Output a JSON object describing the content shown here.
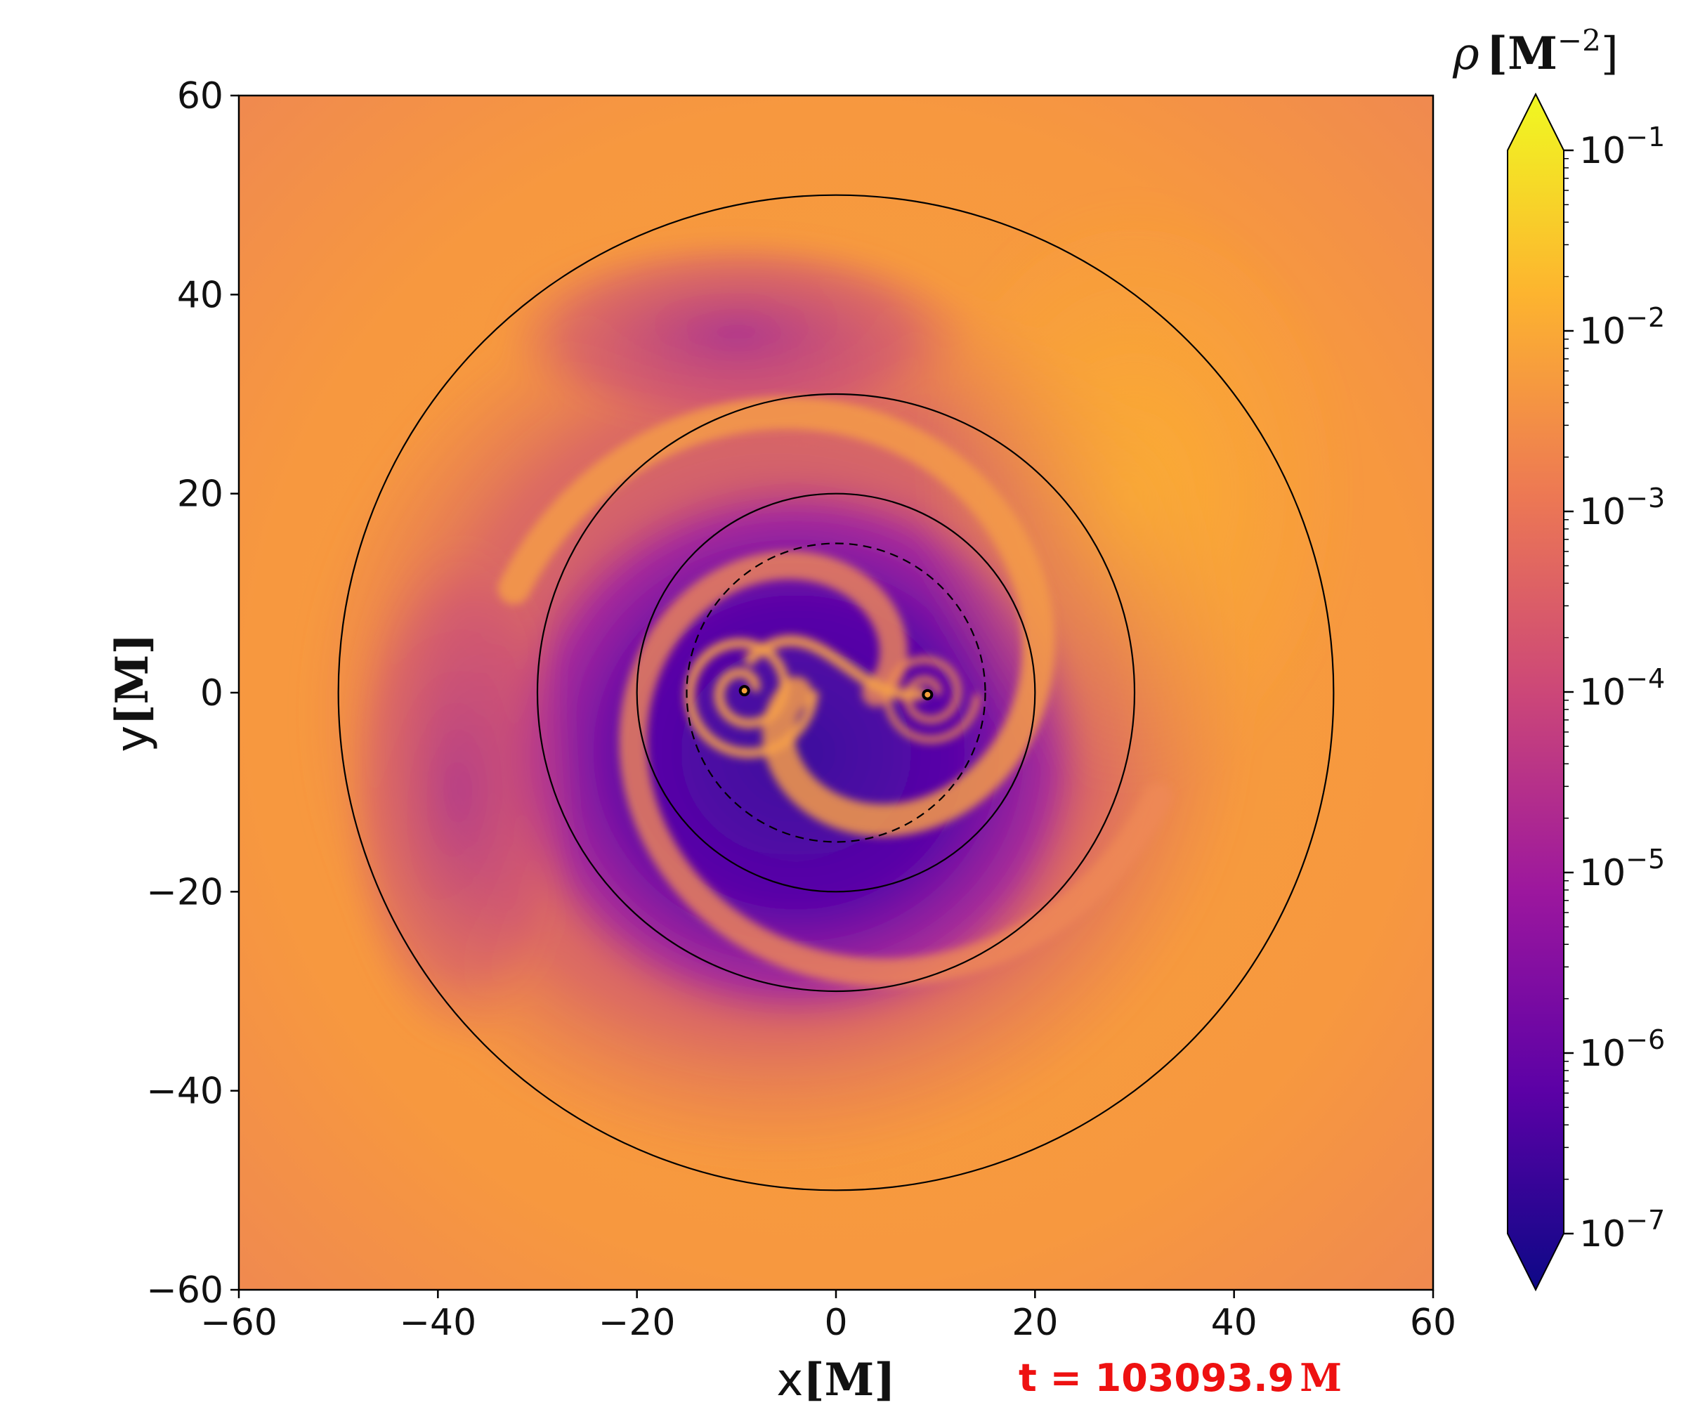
{
  "chart_data": {
    "type": "heatmap",
    "title": "",
    "xlabel": {
      "var": "x",
      "unit": "[M]"
    },
    "ylabel": {
      "var": "y",
      "unit": "[M]"
    },
    "xlim": [
      -60,
      60
    ],
    "ylim": [
      -60,
      60
    ],
    "x_ticks": [
      "−60",
      "−40",
      "−20",
      "0",
      "20",
      "40",
      "60"
    ],
    "y_ticks": [
      "60",
      "40",
      "20",
      "0",
      "−20",
      "−40",
      "−60"
    ],
    "x_tick_values": [
      -60,
      -40,
      -20,
      0,
      20,
      40,
      60
    ],
    "y_tick_values": [
      60,
      40,
      20,
      0,
      -20,
      -40,
      -60
    ],
    "colorbar": {
      "label_var": "ρ",
      "label_unit": "[M",
      "label_exp": "−2",
      "label_close": "]",
      "scale": "log",
      "range": [
        1e-07,
        0.1
      ],
      "tick_values": [
        -1,
        -2,
        -3,
        -4,
        -5,
        -6,
        -7
      ],
      "tick_base": "10",
      "tick_exponents": [
        "−1",
        "−2",
        "−3",
        "−4",
        "−5",
        "−6",
        "−7"
      ],
      "extend": "both",
      "colormap": "plasma",
      "stops": [
        "#0d0887",
        "#5c01a6",
        "#9c179e",
        "#cc4778",
        "#ed7953",
        "#fdb42f",
        "#f0f921"
      ]
    },
    "circles": [
      {
        "center": [
          0,
          0
        ],
        "radius": 50,
        "style": "solid"
      },
      {
        "center": [
          0,
          0
        ],
        "radius": 30,
        "style": "solid"
      },
      {
        "center": [
          0,
          0
        ],
        "radius": 20,
        "style": "solid"
      },
      {
        "center": [
          0,
          0
        ],
        "radius": 15,
        "style": "dashed"
      }
    ],
    "black_holes": [
      {
        "x": -9.2,
        "y": 0.2
      },
      {
        "x": 9.2,
        "y": -0.2
      }
    ],
    "annotation": {
      "time_prefix": "t = 103093.9",
      "time_unit": "M",
      "color": "#ee1111"
    }
  }
}
